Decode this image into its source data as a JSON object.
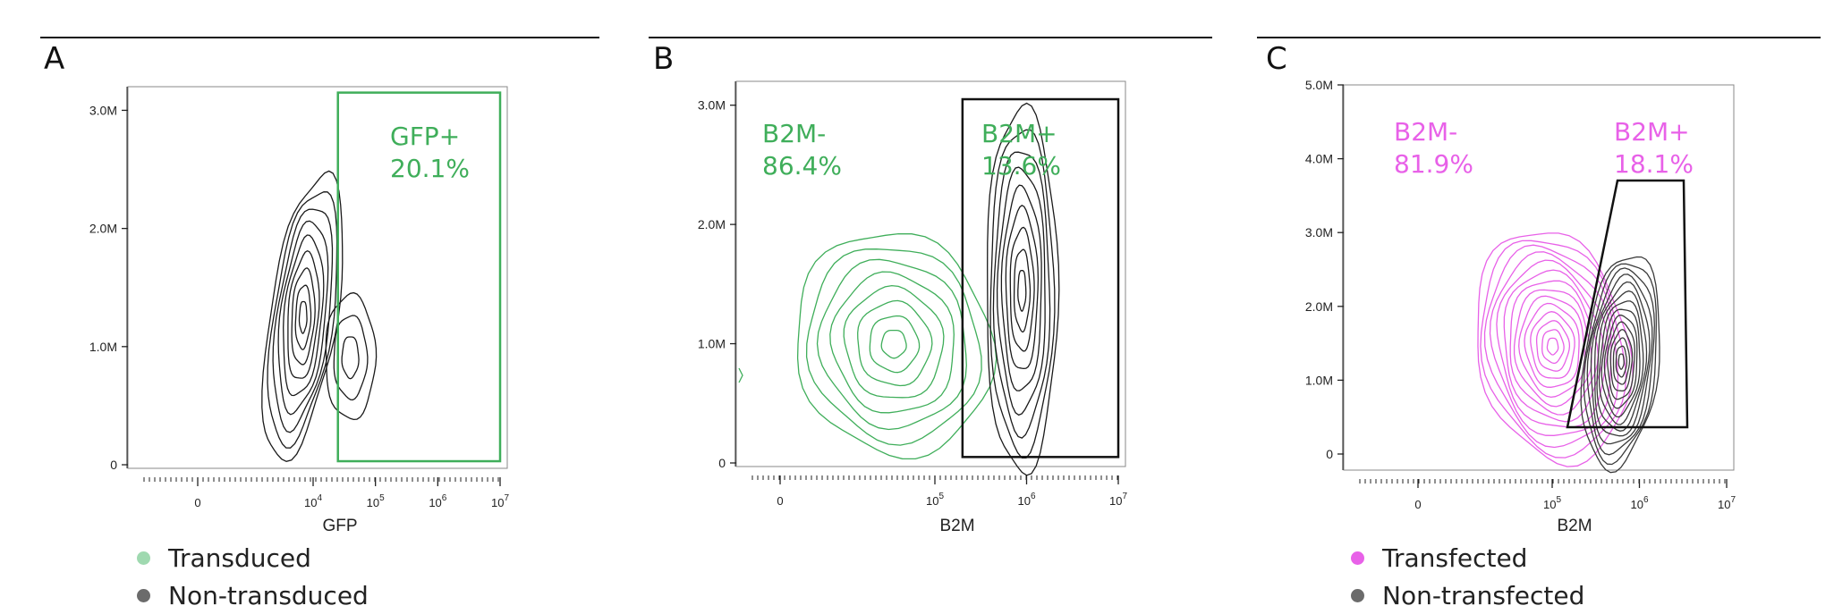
{
  "colors": {
    "transduced": "#3fae5a",
    "transduced_legend": "#9fd9b0",
    "non_transduced": "#1a1a1a",
    "non_transduced_legend": "#6b6b6b",
    "transfected": "#e861e8",
    "transfected_legend": "#e861e8",
    "non_transfected": "#3a3a3a",
    "non_transfected_legend": "#6b6b6b"
  },
  "chart_data": [
    {
      "panel": "A",
      "type": "contour",
      "xlabel": "GFP",
      "x_scale": "biexponential",
      "x_ticks": [
        "0",
        "10^4",
        "10^5",
        "10^6",
        "10^7"
      ],
      "y_ticks": [
        "0",
        "1.0M",
        "2.0M",
        "3.0M"
      ],
      "ylim": [
        0,
        3200000
      ],
      "gates": [
        {
          "name": "GFP+",
          "percent": "20.1%",
          "color": "transduced",
          "shape": "rectangle",
          "x_range": [
            25000,
            10000000
          ],
          "y_range": [
            30000,
            3150000
          ]
        }
      ],
      "populations": [
        {
          "name": "Non-transduced",
          "color": "non_transduced",
          "clusters": [
            {
              "center_x": 9000,
              "center_y": 1100000,
              "levels": 9
            },
            {
              "center_x": 55000,
              "center_y": 950000,
              "levels": 3
            }
          ]
        }
      ],
      "legend": [
        "Transduced",
        "Non-transduced"
      ]
    },
    {
      "panel": "B",
      "type": "contour",
      "xlabel": "B2M",
      "x_scale": "biexponential",
      "x_ticks": [
        "0",
        "10^5",
        "10^6",
        "10^7"
      ],
      "y_ticks": [
        "0",
        "1.0M",
        "2.0M",
        "3.0M"
      ],
      "ylim": [
        0,
        3200000
      ],
      "gates": [
        {
          "name": "B2M-",
          "percent": "86.4%",
          "color": "transduced",
          "shape": "none"
        },
        {
          "name": "B2M+",
          "percent": "13.6%",
          "color": "transduced",
          "shape": "rectangle",
          "x_range": [
            200000,
            10000000
          ],
          "y_range": [
            50000,
            3050000
          ]
        }
      ],
      "populations": [
        {
          "name": "Transduced",
          "color": "transduced",
          "clusters": [
            {
              "center_x": 70000,
              "center_y": 1000000,
              "levels": 8
            }
          ]
        },
        {
          "name": "Non-transduced",
          "color": "non_transduced",
          "clusters": [
            {
              "center_x": 850000,
              "center_y": 1150000,
              "levels": 9
            }
          ]
        }
      ]
    },
    {
      "panel": "C",
      "type": "contour",
      "xlabel": "B2M",
      "x_scale": "biexponential",
      "x_ticks": [
        "0",
        "10^5",
        "10^6",
        "10^7"
      ],
      "y_ticks": [
        "0",
        "1.0M",
        "2.0M",
        "3.0M",
        "4.0M",
        "5.0M"
      ],
      "ylim": [
        0,
        5000000
      ],
      "gates": [
        {
          "name": "B2M-",
          "percent": "81.9%",
          "color": "transfected",
          "shape": "none"
        },
        {
          "name": "B2M+",
          "percent": "18.1%",
          "color": "transfected",
          "shape": "trapezoid"
        }
      ],
      "populations": [
        {
          "name": "Transfected",
          "color": "transfected",
          "clusters": [
            {
              "center_x": 90000,
              "center_y": 1400000,
              "levels": 14
            }
          ]
        },
        {
          "name": "Non-transfected",
          "color": "non_transfected",
          "clusters": [
            {
              "center_x": 550000,
              "center_y": 650000,
              "levels": 14
            }
          ]
        }
      ],
      "legend": [
        "Transfected",
        "Non-transfected"
      ]
    }
  ],
  "panels": {
    "a": {
      "letter": "A",
      "xlabel": "GFP",
      "gate1_name": "GFP+",
      "gate1_pct": "20.1%"
    },
    "b": {
      "letter": "B",
      "xlabel": "B2M",
      "gate0_name": "B2M-",
      "gate0_pct": "86.4%",
      "gate1_name": "B2M+",
      "gate1_pct": "13.6%"
    },
    "c": {
      "letter": "C",
      "xlabel": "B2M",
      "gate0_name": "B2M-",
      "gate0_pct": "81.9%",
      "gate1_name": "B2M+",
      "gate1_pct": "18.1%"
    }
  },
  "legends": {
    "a": [
      {
        "label": "Transduced",
        "color": "#9fd9b0"
      },
      {
        "label": "Non-transduced",
        "color": "#6b6b6b"
      }
    ],
    "c": [
      {
        "label": "Transfected",
        "color": "#e861e8"
      },
      {
        "label": "Non-transfected",
        "color": "#6b6b6b"
      }
    ]
  }
}
